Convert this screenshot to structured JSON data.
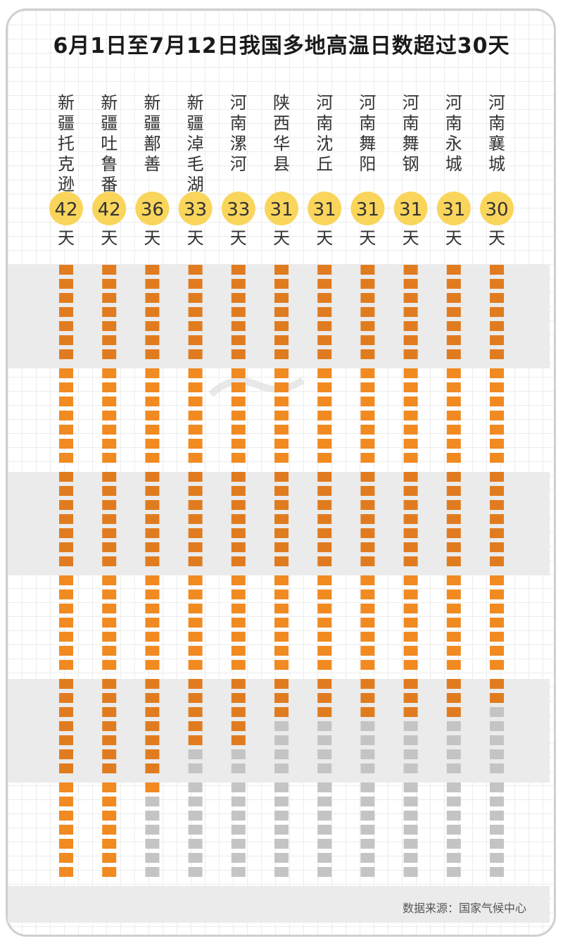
{
  "title": "6月1日至7月12日我国多地高温日数超过30天",
  "source": "数据来源：国家气候中心",
  "unit": "天",
  "colors": {
    "hot_day_dark": "#E07C1F",
    "hot_day_light": "#F18A21",
    "not_hot": "#C4C4C4",
    "badge": "#F9D55B",
    "band": "#EBEBEB"
  },
  "chart_data": {
    "type": "bar",
    "categories": [
      "新疆托克逊",
      "新疆吐鲁番",
      "新疆鄯善",
      "新疆淖毛湖",
      "河南漯河",
      "陕西华县",
      "河南沈丘",
      "河南舞阳",
      "河南舞钢",
      "河南永城",
      "河南襄城"
    ],
    "values": [
      42,
      42,
      36,
      33,
      33,
      31,
      31,
      31,
      31,
      31,
      30
    ],
    "total_days": 42,
    "ylabel": "天"
  }
}
